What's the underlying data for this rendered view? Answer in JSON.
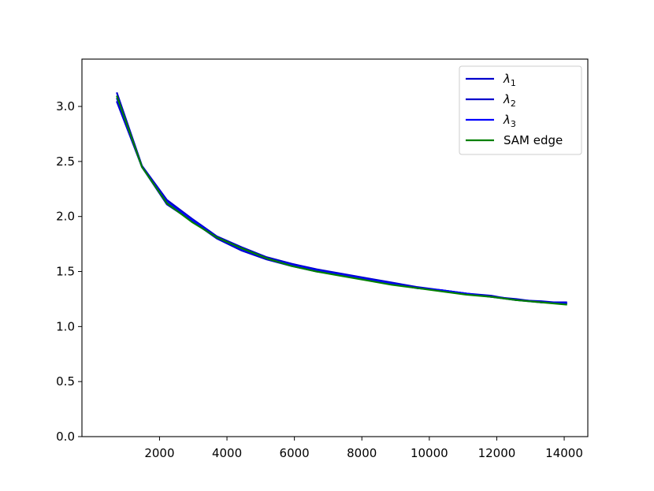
{
  "chart_data": {
    "type": "line",
    "title": "",
    "xlabel": "",
    "ylabel": "",
    "xlim": [
      -300,
      14700
    ],
    "ylim": [
      0.0,
      3.43
    ],
    "xticks": [
      2000,
      4000,
      6000,
      8000,
      10000,
      12000,
      14000
    ],
    "yticks": [
      0.0,
      0.5,
      1.0,
      1.5,
      2.0,
      2.5,
      3.0
    ],
    "xtick_labels": [
      "2000",
      "4000",
      "6000",
      "8000",
      "10000",
      "12000",
      "14000"
    ],
    "ytick_labels": [
      "0.0",
      "0.5",
      "1.0",
      "1.5",
      "2.0",
      "2.5",
      "3.0"
    ],
    "legend_position": "top-right",
    "grid": false,
    "series": [
      {
        "name": "λ1",
        "base": "λ",
        "sub": "1",
        "color": "#0000cc",
        "x": [
          740,
          1480,
          2220,
          2960,
          3700,
          4440,
          5180,
          5920,
          6660,
          7400,
          8140,
          8880,
          9620,
          10360,
          11100,
          11840,
          12580,
          13320,
          14060
        ],
        "y": [
          3.12,
          2.46,
          2.15,
          1.98,
          1.82,
          1.72,
          1.63,
          1.57,
          1.52,
          1.48,
          1.44,
          1.4,
          1.36,
          1.33,
          1.3,
          1.27,
          1.25,
          1.22,
          1.22
        ]
      },
      {
        "name": "λ2",
        "base": "λ",
        "sub": "2",
        "color": "#0000cc",
        "x": [
          740,
          1480,
          2220,
          2960,
          3700,
          4440,
          5180,
          5920,
          6660,
          7400,
          8140,
          8880,
          9620,
          10360,
          11100,
          11840,
          12580,
          13320,
          14060
        ],
        "y": [
          3.04,
          2.45,
          2.11,
          1.96,
          1.8,
          1.69,
          1.61,
          1.55,
          1.5,
          1.47,
          1.43,
          1.39,
          1.35,
          1.33,
          1.3,
          1.28,
          1.24,
          1.23,
          1.21
        ]
      },
      {
        "name": "λ3",
        "base": "λ",
        "sub": "3",
        "color": "#0000ff",
        "x": [
          740,
          1480,
          2220,
          2960,
          3700,
          4440,
          5180,
          5920,
          6660,
          7400,
          8140,
          8880,
          9620,
          10360,
          11100,
          11840,
          12580,
          13320,
          14060
        ],
        "y": [
          3.07,
          2.45,
          2.13,
          1.97,
          1.81,
          1.7,
          1.62,
          1.56,
          1.51,
          1.47,
          1.43,
          1.39,
          1.35,
          1.33,
          1.3,
          1.27,
          1.24,
          1.22,
          1.21
        ]
      },
      {
        "name": "SAM edge",
        "base": "SAM edge",
        "sub": "",
        "color": "#008000",
        "x": [
          740,
          1480,
          2220,
          2960,
          3700,
          4440,
          5180,
          5920,
          6660,
          7400,
          8140,
          8880,
          9620,
          10360,
          11100,
          11840,
          12580,
          13320,
          14060
        ],
        "y": [
          3.09,
          2.45,
          2.12,
          1.95,
          1.81,
          1.71,
          1.62,
          1.55,
          1.5,
          1.46,
          1.42,
          1.38,
          1.35,
          1.32,
          1.29,
          1.27,
          1.24,
          1.22,
          1.2
        ]
      }
    ]
  }
}
